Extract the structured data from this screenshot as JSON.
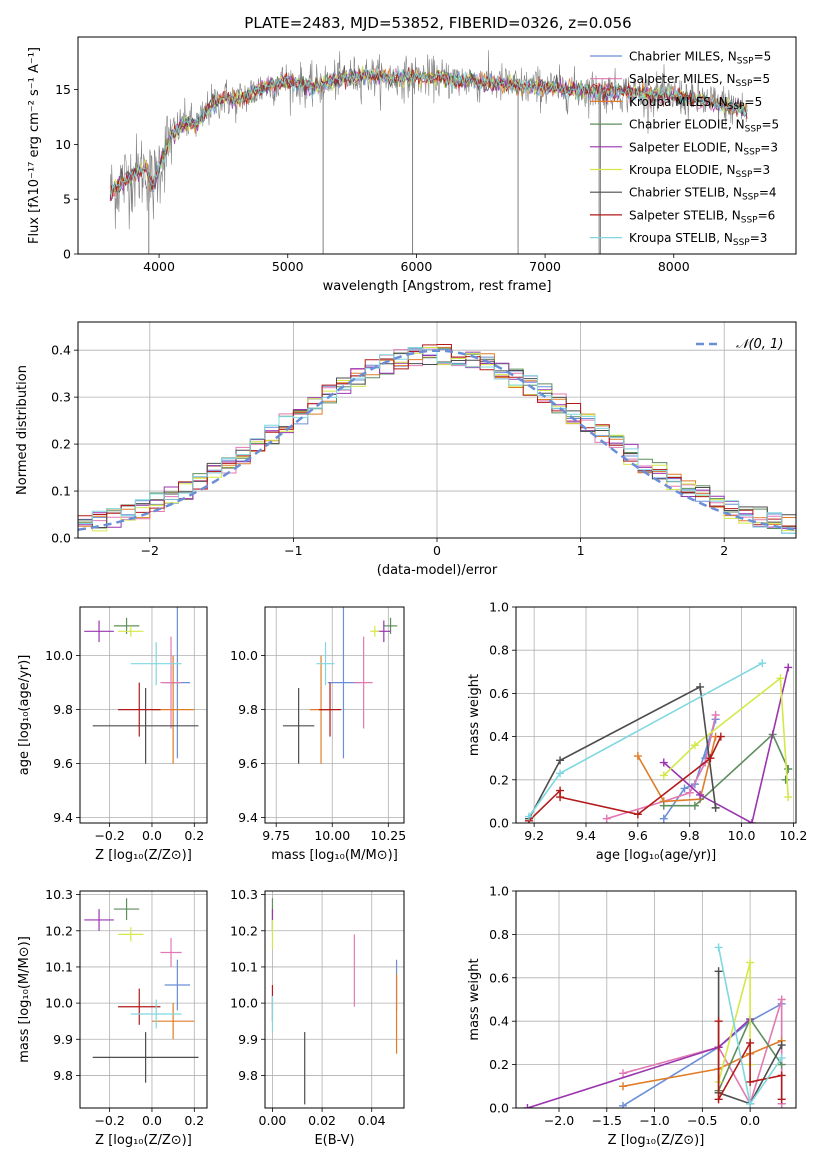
{
  "figure_title": "PLATE=2483, MJD=53852, FIBERID=0326, z=0.056",
  "colors": {
    "Chabrier MILES": "#6a8fd8",
    "Salpeter MILES": "#e17ab4",
    "Kroupa MILES": "#e07d28",
    "Chabrier ELODIE": "#5e8e5e",
    "Salpeter ELODIE": "#9a35b0",
    "Kroupa ELODIE": "#d4e84a",
    "Chabrier STELIB": "#4d4d4d",
    "Salpeter STELIB": "#b31a1a",
    "Kroupa STELIB": "#7fd8e0",
    "data": "#808080",
    "normal": "#6a8fd8"
  },
  "chart_data": [
    {
      "id": "spectrum",
      "type": "line",
      "xlabel": "wavelength [Angstrom, rest frame]",
      "ylabel": "Flux [fλ10⁻¹⁷ erg cm⁻² s⁻¹ A⁻¹]",
      "xlim": [
        3370,
        8950
      ],
      "ylim": [
        0,
        19.8
      ],
      "xticks": [
        4000,
        5000,
        6000,
        7000,
        8000
      ],
      "yticks": [
        0,
        5,
        10,
        15
      ],
      "grid": false,
      "legend_position": "right",
      "legend": [
        "Chabrier MILES, N_SSP=5",
        "Salpeter MILES, N_SSP=5",
        "Kroupa MILES, N_SSP=5",
        "Chabrier ELODIE, N_SSP=5",
        "Salpeter ELODIE, N_SSP=3",
        "Kroupa ELODIE, N_SSP=3",
        "Chabrier STELIB, N_SSP=4",
        "Salpeter STELIB, N_SSP=6",
        "Kroupa STELIB, N_SSP=3"
      ],
      "continuum": {
        "x": [
          3620,
          3700,
          3800,
          3900,
          3950,
          4000,
          4100,
          4200,
          4300,
          4400,
          4500,
          4600,
          4800,
          5000,
          5200,
          5400,
          5600,
          5800,
          6000,
          6200,
          6400,
          6600,
          6800,
          7000,
          7200,
          7400,
          7600,
          7800,
          8000,
          8200,
          8400,
          8500,
          8570
        ],
        "y": [
          5.5,
          6.5,
          7.2,
          7.8,
          6.0,
          8.0,
          11.0,
          12.0,
          11.8,
          13.5,
          14.3,
          14.0,
          15.2,
          15.8,
          15.2,
          16.0,
          16.3,
          16.0,
          16.2,
          16.0,
          15.8,
          15.6,
          15.3,
          15.2,
          15.0,
          14.9,
          14.8,
          14.6,
          14.4,
          14.0,
          13.6,
          13.3,
          13.0
        ]
      },
      "spikes": [
        {
          "x": 5275,
          "y": 0.0
        },
        {
          "x": 5970,
          "y": 0.0
        },
        {
          "x": 6790,
          "y": 0.0
        },
        {
          "x": 7420,
          "y": 0.0
        },
        {
          "x": 3920,
          "y": 0.0
        },
        {
          "x": 7430,
          "y": 0.0
        }
      ]
    },
    {
      "id": "residual_histogram",
      "type": "line",
      "xlabel": "(data-model)/error",
      "ylabel": "Normed distribution",
      "xlim": [
        -2.5,
        2.5
      ],
      "ylim": [
        0,
        0.46
      ],
      "xticks": [
        -2,
        -1,
        0,
        1,
        2
      ],
      "yticks": [
        0.0,
        0.1,
        0.2,
        0.3,
        0.4
      ],
      "grid": true,
      "legend_position": "top-right",
      "legend": [
        "𝒩(0, 1)"
      ],
      "bin_width": 0.1,
      "bin_start": -2.5,
      "normal_curve": {
        "mean": 0,
        "sigma": 1
      }
    },
    {
      "id": "age_vs_Z",
      "type": "scatter",
      "xlabel": "Z [log₁₀(Z/Z⊙)]",
      "ylabel": "age  [log₁₀(age/yr)]",
      "xlim": [
        -0.34,
        0.26
      ],
      "ylim": [
        9.38,
        10.18
      ],
      "xticks": [
        -0.2,
        0.0,
        0.2
      ],
      "yticks": [
        9.4,
        9.6,
        9.8,
        10.0
      ],
      "grid": true,
      "points": [
        {
          "model": "Chabrier MILES",
          "x": 0.12,
          "y": 9.9,
          "xerr": 0.06,
          "yerr": 0.28
        },
        {
          "model": "Salpeter MILES",
          "x": 0.09,
          "y": 9.9,
          "xerr": 0.05,
          "yerr": 0.17
        },
        {
          "model": "Kroupa MILES",
          "x": 0.1,
          "y": 9.8,
          "xerr": 0.1,
          "yerr": 0.2
        },
        {
          "model": "Chabrier ELODIE",
          "x": -0.12,
          "y": 10.11,
          "xerr": 0.06,
          "yerr": 0.03
        },
        {
          "model": "Salpeter ELODIE",
          "x": -0.25,
          "y": 10.09,
          "xerr": 0.07,
          "yerr": 0.04
        },
        {
          "model": "Kroupa ELODIE",
          "x": -0.1,
          "y": 10.09,
          "xerr": 0.06,
          "yerr": 0.02
        },
        {
          "model": "Chabrier STELIB",
          "x": -0.03,
          "y": 9.74,
          "xerr": 0.25,
          "yerr": 0.14
        },
        {
          "model": "Salpeter STELIB",
          "x": -0.06,
          "y": 9.8,
          "xerr": 0.1,
          "yerr": 0.1
        },
        {
          "model": "Kroupa STELIB",
          "x": 0.02,
          "y": 9.97,
          "xerr": 0.12,
          "yerr": 0.08
        }
      ]
    },
    {
      "id": "age_vs_mass",
      "type": "scatter",
      "xlabel": "mass [log₁₀(M/M⊙)]",
      "ylabel": "",
      "xlim": [
        9.7,
        10.32
      ],
      "ylim": [
        9.38,
        10.18
      ],
      "xticks": [
        9.75,
        10.0,
        10.25
      ],
      "yticks": [
        9.4,
        9.6,
        9.8,
        10.0
      ],
      "grid": true,
      "points": [
        {
          "model": "Chabrier MILES",
          "x": 10.05,
          "y": 9.9,
          "xerr": 0.07,
          "yerr": 0.28
        },
        {
          "model": "Salpeter MILES",
          "x": 10.14,
          "y": 9.9,
          "xerr": 0.04,
          "yerr": 0.17
        },
        {
          "model": "Kroupa MILES",
          "x": 9.95,
          "y": 9.8,
          "xerr": 0.05,
          "yerr": 0.2
        },
        {
          "model": "Chabrier ELODIE",
          "x": 10.26,
          "y": 10.11,
          "xerr": 0.03,
          "yerr": 0.03
        },
        {
          "model": "Salpeter ELODIE",
          "x": 10.23,
          "y": 10.09,
          "xerr": 0.03,
          "yerr": 0.04
        },
        {
          "model": "Kroupa ELODIE",
          "x": 10.19,
          "y": 10.09,
          "xerr": 0.02,
          "yerr": 0.02
        },
        {
          "model": "Chabrier STELIB",
          "x": 9.85,
          "y": 9.74,
          "xerr": 0.07,
          "yerr": 0.14
        },
        {
          "model": "Salpeter STELIB",
          "x": 9.99,
          "y": 9.8,
          "xerr": 0.05,
          "yerr": 0.1
        },
        {
          "model": "Kroupa STELIB",
          "x": 9.97,
          "y": 9.97,
          "xerr": 0.04,
          "yerr": 0.08
        }
      ]
    },
    {
      "id": "mass_weight_vs_age",
      "type": "line",
      "xlabel": "age  [log₁₀(age/yr)]",
      "ylabel": "mass weight",
      "xlim": [
        9.13,
        10.21
      ],
      "ylim": [
        0.0,
        1.0
      ],
      "xticks": [
        9.2,
        9.4,
        9.6,
        9.8,
        10.0,
        10.2
      ],
      "yticks": [
        0.0,
        0.2,
        0.4,
        0.6,
        0.8,
        1.0
      ],
      "grid": true,
      "series": [
        {
          "model": "Chabrier MILES",
          "x": [
            9.7,
            9.78,
            9.82,
            9.9,
            9.86
          ],
          "y": [
            0.02,
            0.16,
            0.18,
            0.48,
            0.3
          ]
        },
        {
          "model": "Salpeter MILES",
          "x": [
            9.48,
            9.7,
            9.8,
            9.86,
            9.9
          ],
          "y": [
            0.02,
            0.1,
            0.14,
            0.28,
            0.5
          ]
        },
        {
          "model": "Kroupa MILES",
          "x": [
            9.6,
            9.7,
            9.84,
            9.9
          ],
          "y": [
            0.31,
            0.1,
            0.11,
            0.4
          ]
        },
        {
          "model": "Chabrier ELODIE",
          "x": [
            9.7,
            9.82,
            10.12,
            10.18,
            10.17
          ],
          "y": [
            0.08,
            0.08,
            0.41,
            0.25,
            0.2
          ]
        },
        {
          "model": "Salpeter ELODIE",
          "x": [
            9.7,
            9.84,
            10.04,
            10.18
          ],
          "y": [
            0.28,
            0.13,
            0.0,
            0.72
          ]
        },
        {
          "model": "Kroupa ELODIE",
          "x": [
            9.7,
            9.82,
            10.15,
            10.18
          ],
          "y": [
            0.22,
            0.36,
            0.67,
            0.12
          ]
        },
        {
          "model": "Chabrier STELIB",
          "x": [
            9.18,
            9.3,
            9.84,
            9.9
          ],
          "y": [
            0.02,
            0.29,
            0.63,
            0.07
          ]
        },
        {
          "model": "Salpeter STELIB",
          "x": [
            9.18,
            9.3,
            9.3,
            9.6,
            9.88,
            9.92
          ],
          "y": [
            0.01,
            0.15,
            0.12,
            0.04,
            0.3,
            0.4
          ]
        },
        {
          "model": "Kroupa STELIB",
          "x": [
            9.18,
            9.3,
            10.08
          ],
          "y": [
            0.03,
            0.23,
            0.74
          ]
        }
      ]
    },
    {
      "id": "mass_vs_Z",
      "type": "scatter",
      "xlabel": "Z [log₁₀(Z/Z⊙)]",
      "ylabel": "mass [log₁₀(M/M⊙)]",
      "xlim": [
        -0.34,
        0.26
      ],
      "ylim": [
        9.71,
        10.31
      ],
      "xticks": [
        -0.2,
        0.0,
        0.2
      ],
      "yticks": [
        9.8,
        9.9,
        10.0,
        10.1,
        10.2,
        10.3
      ],
      "grid": true,
      "points": [
        {
          "model": "Chabrier MILES",
          "x": 0.12,
          "y": 10.05,
          "xerr": 0.06,
          "yerr": 0.07
        },
        {
          "model": "Salpeter MILES",
          "x": 0.09,
          "y": 10.14,
          "xerr": 0.05,
          "yerr": 0.04
        },
        {
          "model": "Kroupa MILES",
          "x": 0.1,
          "y": 9.95,
          "xerr": 0.1,
          "yerr": 0.05
        },
        {
          "model": "Chabrier ELODIE",
          "x": -0.12,
          "y": 10.26,
          "xerr": 0.06,
          "yerr": 0.03
        },
        {
          "model": "Salpeter ELODIE",
          "x": -0.25,
          "y": 10.23,
          "xerr": 0.07,
          "yerr": 0.03
        },
        {
          "model": "Kroupa ELODIE",
          "x": -0.1,
          "y": 10.19,
          "xerr": 0.06,
          "yerr": 0.02
        },
        {
          "model": "Chabrier STELIB",
          "x": -0.03,
          "y": 9.85,
          "xerr": 0.25,
          "yerr": 0.07
        },
        {
          "model": "Salpeter STELIB",
          "x": -0.06,
          "y": 9.99,
          "xerr": 0.1,
          "yerr": 0.05
        },
        {
          "model": "Kroupa STELIB",
          "x": 0.02,
          "y": 9.97,
          "xerr": 0.12,
          "yerr": 0.04
        }
      ]
    },
    {
      "id": "mass_vs_EBV",
      "type": "scatter",
      "xlabel": "E(B-V)",
      "ylabel": "",
      "xlim": [
        -0.003,
        0.053
      ],
      "ylim": [
        9.71,
        10.31
      ],
      "xticks": [
        0.0,
        0.02,
        0.04
      ],
      "yticks": [
        9.8,
        9.9,
        10.0,
        10.1,
        10.2,
        10.3
      ],
      "grid": true,
      "points": [
        {
          "model": "Chabrier MILES",
          "x": 0.05,
          "y": 10.05,
          "xerr": 0,
          "yerr": 0.07
        },
        {
          "model": "Salpeter MILES",
          "x": 0.033,
          "y": 10.09,
          "xerr": 0,
          "yerr": 0.1
        },
        {
          "model": "Kroupa MILES",
          "x": 0.05,
          "y": 9.97,
          "xerr": 0,
          "yerr": 0.11
        },
        {
          "model": "Chabrier ELODIE",
          "x": 0.0,
          "y": 10.26,
          "xerr": 0,
          "yerr": 0.03
        },
        {
          "model": "Salpeter ELODIE",
          "x": 0.0,
          "y": 10.23,
          "xerr": 0,
          "yerr": 0.03
        },
        {
          "model": "Kroupa ELODIE",
          "x": 0.0,
          "y": 10.19,
          "xerr": 0,
          "yerr": 0.04
        },
        {
          "model": "Chabrier STELIB",
          "x": 0.013,
          "y": 9.82,
          "xerr": 0,
          "yerr": 0.1
        },
        {
          "model": "Salpeter STELIB",
          "x": 0.0,
          "y": 10.0,
          "xerr": 0,
          "yerr": 0.05
        },
        {
          "model": "Kroupa STELIB",
          "x": 0.0,
          "y": 9.97,
          "xerr": 0,
          "yerr": 0.05
        }
      ]
    },
    {
      "id": "mass_weight_vs_Z",
      "type": "line",
      "xlabel": "Z [log₁₀(Z/Z⊙)]",
      "ylabel": "mass weight",
      "xlim": [
        -2.45,
        0.48
      ],
      "ylim": [
        0.0,
        1.0
      ],
      "xticks": [
        -2.0,
        -1.5,
        -1.0,
        -0.5,
        0.0
      ],
      "yticks": [
        0.0,
        0.2,
        0.4,
        0.6,
        0.8,
        1.0
      ],
      "grid": true,
      "series": [
        {
          "model": "Chabrier MILES",
          "x": [
            -1.33,
            -0.33,
            0.0,
            0.33,
            0.33
          ],
          "y": [
            0.01,
            0.28,
            0.4,
            0.48,
            0.02
          ]
        },
        {
          "model": "Salpeter MILES",
          "x": [
            -1.33,
            -0.33,
            0.0,
            0.33,
            0.33
          ],
          "y": [
            0.16,
            0.28,
            0.02,
            0.5,
            0.02
          ]
        },
        {
          "model": "Kroupa MILES",
          "x": [
            -1.33,
            -0.33,
            0.0,
            0.33
          ],
          "y": [
            0.1,
            0.18,
            0.25,
            0.31
          ]
        },
        {
          "model": "Chabrier ELODIE",
          "x": [
            -0.33,
            0.0,
            0.33
          ],
          "y": [
            0.08,
            0.41,
            0.2
          ]
        },
        {
          "model": "Salpeter ELODIE",
          "x": [
            -2.33,
            -0.33,
            0.0
          ],
          "y": [
            0.0,
            0.28,
            0.41
          ]
        },
        {
          "model": "Kroupa ELODIE",
          "x": [
            -0.33,
            0.0,
            0.0
          ],
          "y": [
            0.12,
            0.67,
            0.2
          ]
        },
        {
          "model": "Chabrier STELIB",
          "x": [
            -0.33,
            -0.33,
            0.0,
            0.33
          ],
          "y": [
            0.63,
            0.07,
            0.02,
            0.29
          ]
        },
        {
          "model": "Salpeter STELIB",
          "x": [
            -0.33,
            -0.33,
            0.0,
            0.0,
            0.33,
            0.33
          ],
          "y": [
            0.4,
            0.04,
            0.3,
            0.12,
            0.15,
            0.04
          ]
        },
        {
          "model": "Kroupa STELIB",
          "x": [
            -0.33,
            0.0,
            0.33
          ],
          "y": [
            0.74,
            0.02,
            0.23
          ]
        }
      ]
    }
  ]
}
